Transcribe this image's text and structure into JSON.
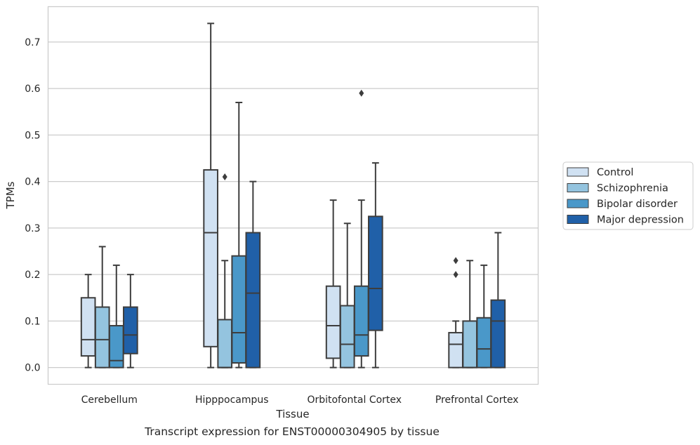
{
  "chart_data": {
    "type": "boxplot",
    "xlabel": "Tissue",
    "ylabel": "TPMs",
    "ylim": [
      -0.036,
      0.776
    ],
    "yticks": [
      0.0,
      0.1,
      0.2,
      0.3,
      0.4,
      0.5,
      0.6,
      0.7
    ],
    "ytick_labels": [
      "0.0",
      "0.1",
      "0.2",
      "0.3",
      "0.4",
      "0.5",
      "0.6",
      "0.7"
    ],
    "grid": true,
    "legend_position": "right",
    "categories": [
      "Cerebellum",
      "Hipppocampus",
      "Orbitofontal Cortex",
      "Prefrontal Cortex"
    ],
    "series": [
      {
        "name": "Control",
        "color": "#d0e1f2",
        "boxes": [
          {
            "whislo": 0.0,
            "q1": 0.025,
            "med": 0.06,
            "q3": 0.15,
            "whishi": 0.2,
            "fliers": []
          },
          {
            "whislo": 0.0,
            "q1": 0.045,
            "med": 0.29,
            "q3": 0.425,
            "whishi": 0.74,
            "fliers": []
          },
          {
            "whislo": 0.0,
            "q1": 0.02,
            "med": 0.09,
            "q3": 0.175,
            "whishi": 0.36,
            "fliers": []
          },
          {
            "whislo": 0.0,
            "q1": 0.0,
            "med": 0.05,
            "q3": 0.075,
            "whishi": 0.1,
            "fliers": [
              0.2,
              0.23
            ]
          }
        ]
      },
      {
        "name": "Schizophrenia",
        "color": "#94c4df",
        "boxes": [
          {
            "whislo": 0.0,
            "q1": 0.0,
            "med": 0.06,
            "q3": 0.13,
            "whishi": 0.26,
            "fliers": []
          },
          {
            "whislo": 0.0,
            "q1": 0.0,
            "med": 0.0,
            "q3": 0.103,
            "whishi": 0.23,
            "fliers": [
              0.41
            ]
          },
          {
            "whislo": 0.0,
            "q1": 0.0,
            "med": 0.05,
            "q3": 0.133,
            "whishi": 0.31,
            "fliers": []
          },
          {
            "whislo": 0.0,
            "q1": 0.0,
            "med": 0.0,
            "q3": 0.1,
            "whishi": 0.23,
            "fliers": []
          }
        ]
      },
      {
        "name": "Bipolar disorder",
        "color": "#4a98c9",
        "boxes": [
          {
            "whislo": 0.0,
            "q1": 0.0,
            "med": 0.015,
            "q3": 0.09,
            "whishi": 0.22,
            "fliers": []
          },
          {
            "whislo": 0.0,
            "q1": 0.01,
            "med": 0.075,
            "q3": 0.24,
            "whishi": 0.57,
            "fliers": []
          },
          {
            "whislo": 0.0,
            "q1": 0.025,
            "med": 0.07,
            "q3": 0.175,
            "whishi": 0.36,
            "fliers": [
              0.59
            ]
          },
          {
            "whislo": 0.0,
            "q1": 0.0,
            "med": 0.04,
            "q3": 0.107,
            "whishi": 0.22,
            "fliers": []
          }
        ]
      },
      {
        "name": "Major depression",
        "color": "#2060a8",
        "boxes": [
          {
            "whislo": 0.0,
            "q1": 0.03,
            "med": 0.07,
            "q3": 0.13,
            "whishi": 0.2,
            "fliers": []
          },
          {
            "whislo": 0.0,
            "q1": 0.0,
            "med": 0.16,
            "q3": 0.29,
            "whishi": 0.4,
            "fliers": []
          },
          {
            "whislo": 0.0,
            "q1": 0.08,
            "med": 0.17,
            "q3": 0.325,
            "whishi": 0.44,
            "fliers": []
          },
          {
            "whislo": 0.0,
            "q1": 0.0,
            "med": 0.1,
            "q3": 0.145,
            "whishi": 0.29,
            "fliers": []
          }
        ]
      }
    ],
    "caption": "Transcript expression for ENST00000304905 by tissue"
  }
}
